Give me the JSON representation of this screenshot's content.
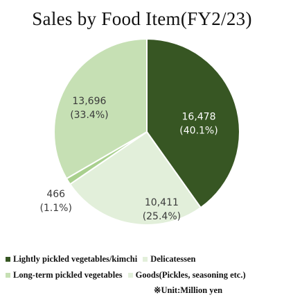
{
  "chart_data": {
    "type": "pie",
    "title": "Sales by Food Item(FY2/23)",
    "unit_note": "※Unit:Million yen",
    "slices": [
      {
        "label": "Lightly pickled vegetables/kimchi",
        "value": 16478,
        "percent": 40.1,
        "value_text": "16,478",
        "percent_text": "(40.1%)",
        "color": "#375623"
      },
      {
        "label": "Delicatessen",
        "value": 10411,
        "percent": 25.4,
        "value_text": "10,411",
        "percent_text": "(25.4%)",
        "color": "#e2efda"
      },
      {
        "label": "Goods(Pickles, seasoning etc.)",
        "value": 466,
        "percent": 1.1,
        "value_text": "466",
        "percent_text": "(1.1%)",
        "color": "#a9d08e"
      },
      {
        "label": "Long-term pickled vegetables",
        "value": 13696,
        "percent": 33.4,
        "value_text": "13,696",
        "percent_text": "(33.4%)",
        "color": "#c6e0b4"
      }
    ],
    "legend": [
      [
        "Lightly pickled vegetables/kimchi",
        "Delicatessen"
      ],
      [
        "Long-term pickled vegetables",
        "Goods(Pickles, seasoning etc.)"
      ]
    ],
    "legend_placement": "bottom"
  }
}
